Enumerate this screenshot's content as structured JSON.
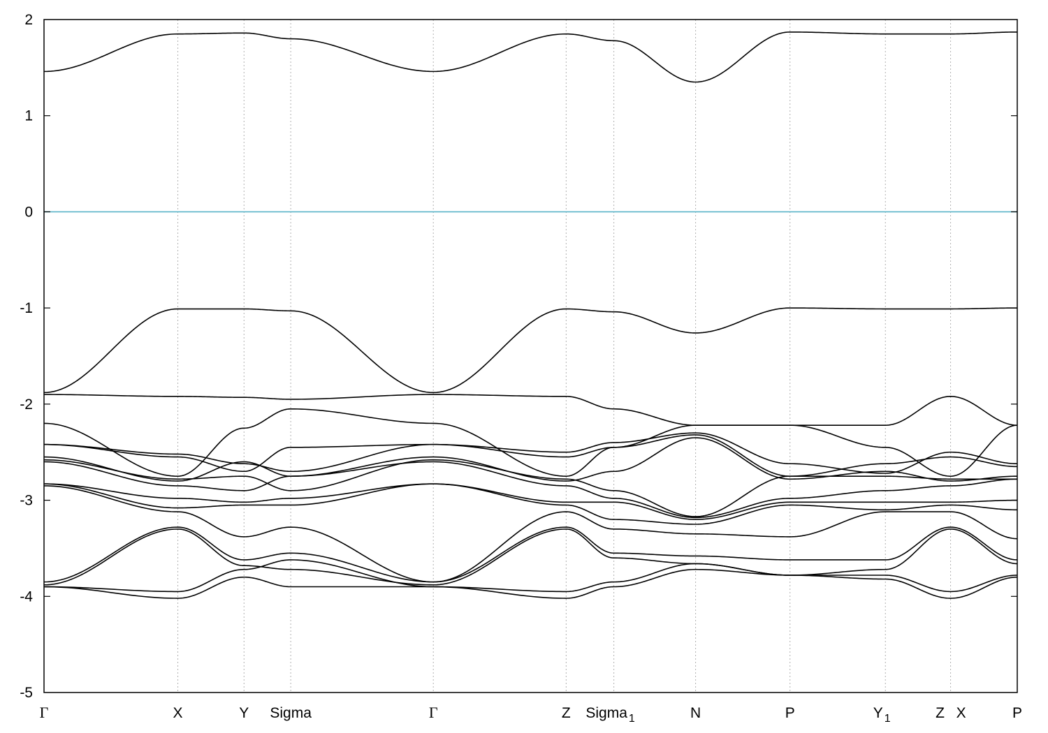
{
  "chart_data": {
    "type": "line",
    "title": "",
    "xlabel": "",
    "ylabel": "",
    "ylim": [
      -5,
      2
    ],
    "yticks": [
      -5,
      -4,
      -3,
      -2,
      -1,
      0,
      1,
      2
    ],
    "xlim": [
      0,
      1
    ],
    "grid": "vertical dotted lines at high-symmetry points",
    "fermi_level": {
      "y": 0,
      "color": "#5ab4c8"
    },
    "line_color": "#000000",
    "kpoints": [
      {
        "main": "Γ",
        "sub": "",
        "x": 0.0
      },
      {
        "main": "X",
        "sub": "",
        "x": 0.1375
      },
      {
        "main": "Y",
        "sub": "",
        "x": 0.2055
      },
      {
        "main": "Sigma",
        "sub": "",
        "x": 0.2535
      },
      {
        "main": "Γ",
        "sub": "",
        "x": 0.4
      },
      {
        "main": "Z",
        "sub": "",
        "x": 0.5365
      },
      {
        "main": "Sigma",
        "sub": "1",
        "x": 0.5855
      },
      {
        "main": "N",
        "sub": "",
        "x": 0.6695
      },
      {
        "main": "P",
        "sub": "",
        "x": 0.7665
      },
      {
        "main": "Y",
        "sub": "1",
        "x": 0.8645
      },
      {
        "main": "Z",
        "sub": "",
        "x": 0.9315
      },
      {
        "main": "X",
        "sub": "",
        "x": 0.9315
      },
      {
        "main": "P",
        "sub": "",
        "x": 1.0
      }
    ],
    "band_knots": [
      0.0,
      0.1375,
      0.2055,
      0.2535,
      0.4,
      0.5365,
      0.5855,
      0.6695,
      0.7665,
      0.8645,
      0.9315,
      1.0
    ],
    "series": [
      {
        "values": [
          1.46,
          1.85,
          1.86,
          1.8,
          1.46,
          1.85,
          1.78,
          1.35,
          1.87,
          1.85,
          1.85,
          1.87
        ]
      },
      {
        "values": [
          -1.88,
          -1.01,
          -1.01,
          -1.03,
          -1.88,
          -1.01,
          -1.04,
          -1.26,
          -1.0,
          -1.01,
          -1.01,
          -1.0
        ]
      },
      {
        "values": [
          -1.9,
          -1.92,
          -1.93,
          -1.95,
          -1.9,
          -1.92,
          -2.05,
          -2.22,
          -2.22,
          -2.22,
          -1.92,
          -2.22
        ]
      },
      {
        "values": [
          -2.2,
          -2.75,
          -2.25,
          -2.05,
          -2.2,
          -2.75,
          -2.45,
          -2.22,
          -2.22,
          -2.45,
          -2.75,
          -2.22
        ]
      },
      {
        "values": [
          -2.42,
          -2.52,
          -2.62,
          -2.7,
          -2.42,
          -2.5,
          -2.4,
          -2.3,
          -2.62,
          -2.72,
          -2.5,
          -2.62
        ]
      },
      {
        "values": [
          -2.42,
          -2.55,
          -2.7,
          -2.45,
          -2.42,
          -2.55,
          -2.45,
          -2.32,
          -2.75,
          -2.62,
          -2.55,
          -2.65
        ]
      },
      {
        "values": [
          -2.55,
          -2.8,
          -2.6,
          -2.75,
          -2.55,
          -2.8,
          -2.7,
          -2.35,
          -2.78,
          -2.7,
          -2.8,
          -2.75
        ]
      },
      {
        "values": [
          -2.58,
          -2.78,
          -2.75,
          -2.9,
          -2.58,
          -2.78,
          -2.9,
          -3.17,
          -2.75,
          -2.75,
          -2.78,
          -2.78
        ]
      },
      {
        "values": [
          -2.6,
          -2.85,
          -2.9,
          -2.75,
          -2.6,
          -2.85,
          -2.98,
          -3.18,
          -2.98,
          -2.9,
          -2.85,
          -2.78
        ]
      },
      {
        "values": [
          -2.83,
          -2.98,
          -3.02,
          -2.98,
          -2.83,
          -3.02,
          -3.02,
          -3.2,
          -3.02,
          -3.02,
          -3.02,
          -3.0
        ]
      },
      {
        "values": [
          -2.83,
          -3.08,
          -3.05,
          -3.05,
          -2.83,
          -3.05,
          -3.2,
          -3.25,
          -3.05,
          -3.1,
          -3.05,
          -3.1
        ]
      },
      {
        "values": [
          -2.85,
          -3.12,
          -3.38,
          -3.28,
          -3.85,
          -3.12,
          -3.3,
          -3.35,
          -3.38,
          -3.12,
          -3.12,
          -3.4
        ]
      },
      {
        "values": [
          -3.85,
          -3.28,
          -3.62,
          -3.55,
          -3.85,
          -3.28,
          -3.55,
          -3.58,
          -3.62,
          -3.62,
          -3.28,
          -3.62
        ]
      },
      {
        "values": [
          -3.88,
          -3.3,
          -3.68,
          -3.72,
          -3.88,
          -3.3,
          -3.6,
          -3.66,
          -3.78,
          -3.72,
          -3.3,
          -3.66
        ]
      },
      {
        "values": [
          -3.9,
          -3.95,
          -3.72,
          -3.62,
          -3.9,
          -3.95,
          -3.85,
          -3.66,
          -3.78,
          -3.78,
          -3.95,
          -3.78
        ]
      },
      {
        "values": [
          -3.9,
          -4.02,
          -3.8,
          -3.9,
          -3.9,
          -4.02,
          -3.9,
          -3.72,
          -3.78,
          -3.82,
          -4.02,
          -3.8
        ]
      }
    ]
  }
}
